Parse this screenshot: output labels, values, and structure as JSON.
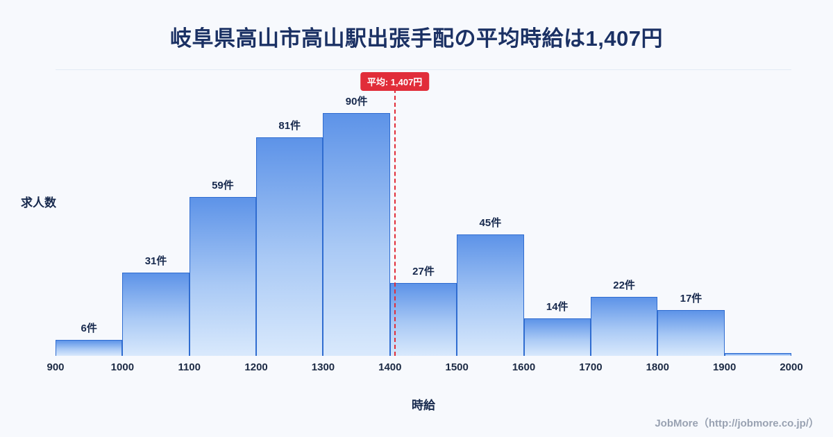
{
  "title": "岐阜県高山市高山駅出張手配の平均時給は1,407円",
  "chart_data": {
    "type": "bar",
    "title": "岐阜県高山市高山駅出張手配の平均時給は1,407円",
    "xlabel": "時給",
    "ylabel": "求人数",
    "bin_start": 900,
    "bin_width": 100,
    "categories": [
      "900-1000",
      "1000-1100",
      "1100-1200",
      "1200-1300",
      "1300-1400",
      "1400-1500",
      "1500-1600",
      "1600-1700",
      "1700-1800",
      "1800-1900",
      "1900-2000"
    ],
    "values": [
      6,
      31,
      59,
      81,
      90,
      27,
      45,
      14,
      22,
      17,
      1
    ],
    "bar_labels": [
      "6件",
      "31件",
      "59件",
      "81件",
      "90件",
      "27件",
      "45件",
      "14件",
      "22件",
      "17件",
      ""
    ],
    "x_ticks": [
      "900",
      "1000",
      "1100",
      "1200",
      "1300",
      "1400",
      "1500",
      "1600",
      "1700",
      "1800",
      "1900",
      "2000"
    ],
    "xlim": [
      900,
      2000
    ],
    "ylim": [
      0,
      106
    ],
    "grid": "off",
    "legend": "none",
    "average": {
      "value": 1407,
      "label": "平均: 1,407円"
    }
  },
  "colors": {
    "background": "#f7f9fd",
    "title_text": "#1b3164",
    "bar_border": "#2f6cd0",
    "bar_gradient_top": "#5d93e8",
    "bar_gradient_bottom": "#d9e9fc",
    "average_line": "#e12d39",
    "label_text": "#17294d",
    "footer_text": "#99a2b2"
  },
  "footer": {
    "credit": "JobMore（http://jobmore.co.jp/）"
  }
}
